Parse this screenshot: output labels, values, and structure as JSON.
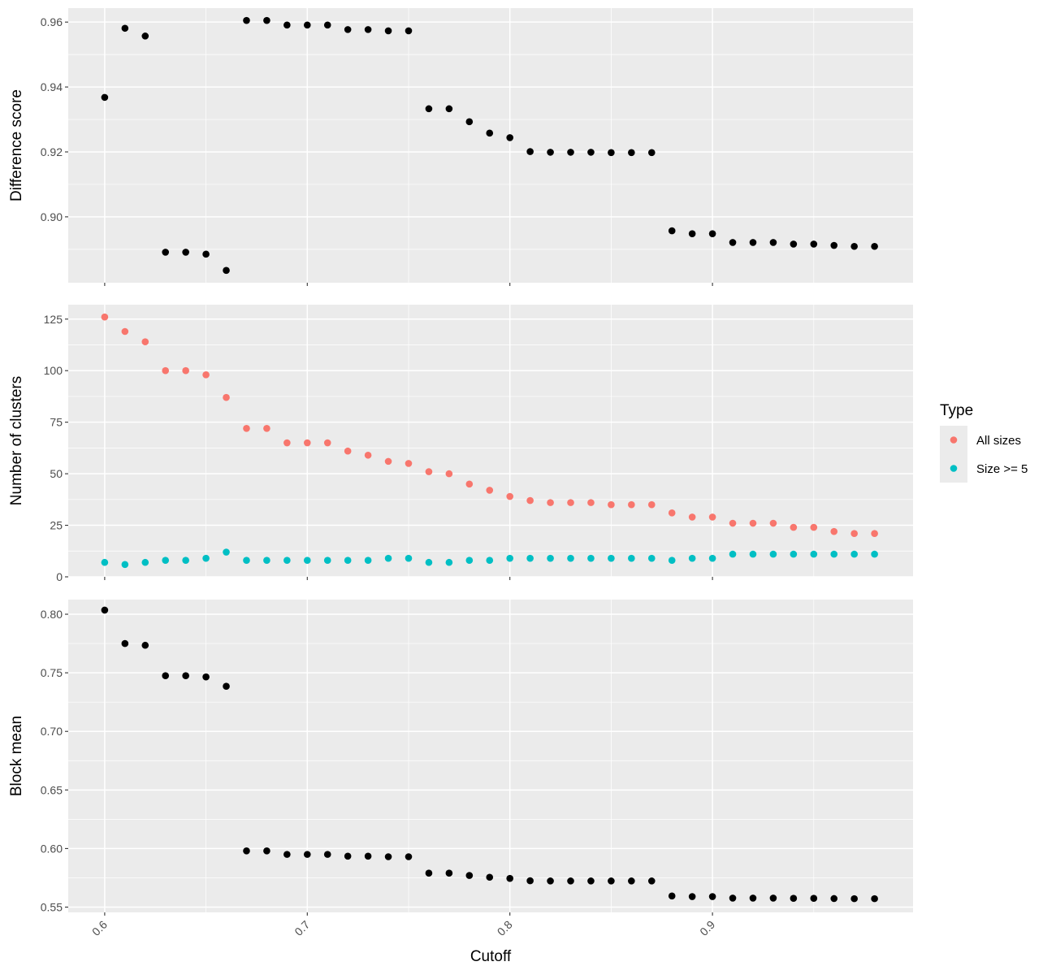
{
  "chart_data": {
    "type": "scatter",
    "x_axis": {
      "label": "Cutoff",
      "range": [
        0.582,
        0.999
      ],
      "ticks": [
        0.6,
        0.7,
        0.8,
        0.9
      ],
      "tick_labels": [
        "0.6",
        "0.7",
        "0.8",
        "0.9"
      ],
      "minor_ticks": [
        0.65,
        0.75,
        0.85,
        0.95
      ],
      "tick_label_rotation_deg": -45
    },
    "grid": true,
    "legend": {
      "title": "Type",
      "position": "right",
      "entries": [
        {
          "label": "All sizes",
          "color": "#F8766D"
        },
        {
          "label": "Size >= 5",
          "color": "#00BFC4"
        }
      ]
    },
    "x": [
      0.6,
      0.61,
      0.62,
      0.63,
      0.64,
      0.65,
      0.66,
      0.67,
      0.68,
      0.69,
      0.7,
      0.71,
      0.72,
      0.73,
      0.74,
      0.75,
      0.76,
      0.77,
      0.78,
      0.79,
      0.8,
      0.81,
      0.82,
      0.83,
      0.84,
      0.85,
      0.86,
      0.87,
      0.88,
      0.89,
      0.9,
      0.91,
      0.92,
      0.93,
      0.94,
      0.95,
      0.96,
      0.97,
      0.98
    ],
    "panels": [
      {
        "name": "difference-score",
        "ylabel": "Difference score",
        "ylim": [
          0.8797,
          0.9643
        ],
        "yticks": [
          0.9,
          0.92,
          0.94,
          0.96
        ],
        "ytick_labels": [
          "0.90",
          "0.92",
          "0.94",
          "0.96"
        ],
        "yminor": [
          0.89,
          0.91,
          0.93,
          0.95
        ],
        "series": [
          {
            "color": "#000000",
            "values": [
              0.9368,
              0.9581,
              0.9557,
              0.8891,
              0.8891,
              0.8885,
              0.8835,
              0.9605,
              0.9605,
              0.9591,
              0.9591,
              0.9591,
              0.9577,
              0.9577,
              0.9573,
              0.9573,
              0.9333,
              0.9333,
              0.9293,
              0.9258,
              0.9244,
              0.9201,
              0.9199,
              0.9199,
              0.9199,
              0.9198,
              0.9198,
              0.9198,
              0.8957,
              0.8948,
              0.8948,
              0.8921,
              0.8921,
              0.8921,
              0.8916,
              0.8916,
              0.8912,
              0.8909,
              0.8909
            ]
          }
        ]
      },
      {
        "name": "number-of-clusters",
        "ylabel": "Number of clusters",
        "ylim": [
          0,
          132
        ],
        "yticks": [
          0,
          25,
          50,
          75,
          100,
          125
        ],
        "ytick_labels": [
          "0",
          "25",
          "50",
          "75",
          "100",
          "125"
        ],
        "yminor": [
          12.5,
          37.5,
          62.5,
          87.5,
          112.5
        ],
        "series": [
          {
            "name": "All sizes",
            "color": "#F8766D",
            "values": [
              126,
              119,
              114,
              100,
              100,
              98,
              87,
              72,
              72,
              65,
              65,
              65,
              61,
              59,
              56,
              55,
              51,
              50,
              45,
              42,
              39,
              37,
              36,
              36,
              36,
              35,
              35,
              35,
              31,
              29,
              29,
              26,
              26,
              26,
              24,
              24,
              22,
              21,
              21
            ]
          },
          {
            "name": "Size >= 5",
            "color": "#00BFC4",
            "values": [
              7,
              6,
              7,
              8,
              8,
              9,
              12,
              8,
              8,
              8,
              8,
              8,
              8,
              8,
              9,
              9,
              7,
              7,
              8,
              8,
              9,
              9,
              9,
              9,
              9,
              9,
              9,
              9,
              8,
              9,
              9,
              11,
              11,
              11,
              11,
              11,
              11,
              11,
              11
            ]
          }
        ]
      },
      {
        "name": "block-mean",
        "ylabel": "Block mean",
        "ylim": [
          0.5455,
          0.8125
        ],
        "yticks": [
          0.55,
          0.6,
          0.65,
          0.7,
          0.75,
          0.8
        ],
        "ytick_labels": [
          "0.55",
          "0.60",
          "0.65",
          "0.70",
          "0.75",
          "0.80"
        ],
        "yminor": [
          0.575,
          0.625,
          0.675,
          0.725,
          0.775
        ],
        "series": [
          {
            "color": "#000000",
            "values": [
              0.8035,
              0.775,
              0.7735,
              0.7475,
              0.7475,
              0.7465,
              0.7385,
              0.598,
              0.598,
              0.595,
              0.595,
              0.595,
              0.5935,
              0.5935,
              0.593,
              0.593,
              0.579,
              0.579,
              0.577,
              0.5755,
              0.5745,
              0.5725,
              0.5723,
              0.5723,
              0.5723,
              0.5723,
              0.5723,
              0.5723,
              0.5595,
              0.559,
              0.559,
              0.5577,
              0.5577,
              0.5577,
              0.5575,
              0.5575,
              0.5573,
              0.5572,
              0.5572
            ]
          }
        ]
      }
    ]
  }
}
